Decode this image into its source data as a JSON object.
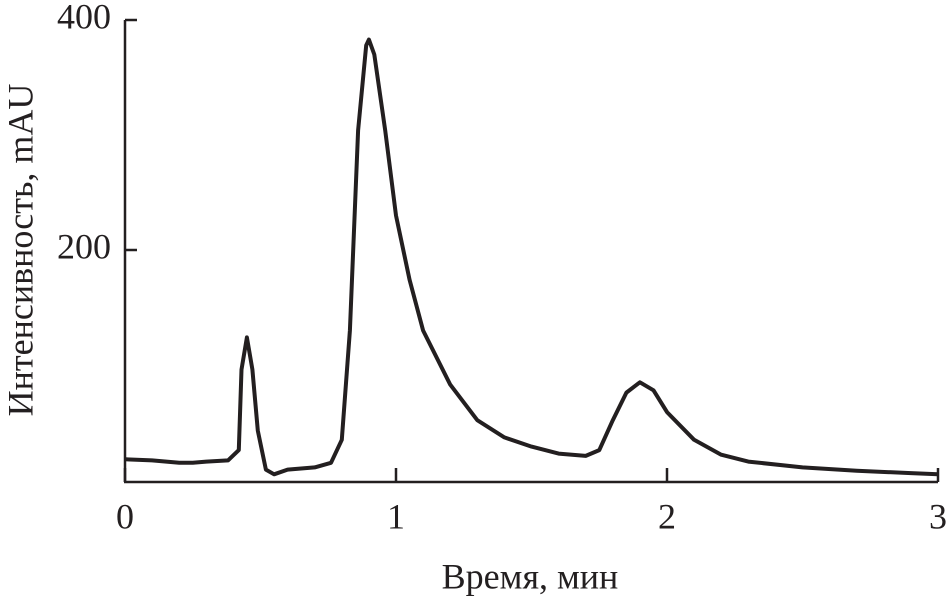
{
  "chart_data": {
    "type": "line",
    "xlabel": "Время, мин",
    "ylabel": "Интенсивность, mAU",
    "xlim": [
      0,
      3
    ],
    "ylim": [
      0,
      400
    ],
    "xticks": [
      0,
      1,
      2,
      3
    ],
    "yticks": [
      200,
      400
    ],
    "color": "#231f20",
    "x": [
      0,
      0.1,
      0.2,
      0.25,
      0.3,
      0.38,
      0.42,
      0.43,
      0.45,
      0.47,
      0.49,
      0.52,
      0.55,
      0.6,
      0.7,
      0.76,
      0.8,
      0.83,
      0.86,
      0.89,
      0.9,
      0.92,
      0.96,
      1.0,
      1.05,
      1.1,
      1.2,
      1.3,
      1.4,
      1.5,
      1.6,
      1.7,
      1.75,
      1.8,
      1.85,
      1.9,
      1.95,
      2.0,
      2.1,
      2.2,
      2.3,
      2.5,
      2.7,
      2.9,
      3.0
    ],
    "values": [
      18,
      17,
      15,
      15,
      16,
      17,
      26,
      96,
      124,
      96,
      43,
      9,
      5,
      9,
      11,
      15,
      35,
      130,
      304,
      378,
      383,
      370,
      304,
      230,
      174,
      130,
      83,
      52,
      37,
      29,
      23,
      21,
      26,
      52,
      76,
      85,
      78,
      59,
      35,
      22,
      16,
      11,
      8,
      6,
      5
    ]
  }
}
